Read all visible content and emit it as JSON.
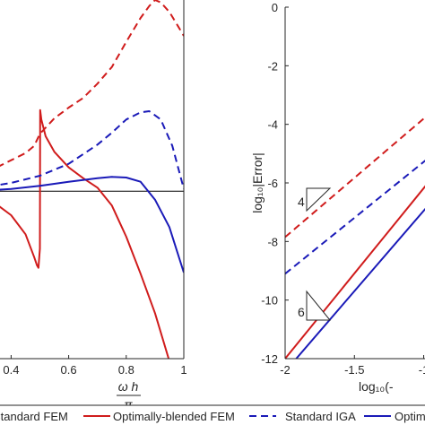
{
  "chart_data": [
    {
      "type": "line",
      "panel": "left",
      "xlabel_num": "ω h",
      "xlabel_den": "π",
      "xlim": [
        0,
        1
      ],
      "ylim": [
        -1.4,
        1.6
      ],
      "xticks": [
        0.4,
        0.6,
        0.8,
        1
      ],
      "xtick_labels": [
        "0.4",
        "0.6",
        "0.8",
        "1"
      ],
      "grid": false,
      "series": [
        {
          "name": "Standard FEM",
          "color": "#000000",
          "dash": "solid",
          "x": [
            0,
            1
          ],
          "y": [
            0,
            0
          ]
        },
        {
          "name": "Optimally-blended FEM",
          "color": "#d01c1c",
          "dash": "solid",
          "x": [
            0.0,
            0.2,
            0.3,
            0.35,
            0.4,
            0.45,
            0.48,
            0.49,
            0.495,
            0.5,
            0.501,
            0.505,
            0.52,
            0.55,
            0.6,
            0.65,
            0.7,
            0.75,
            0.8,
            0.85,
            0.9,
            0.95
          ],
          "y": [
            0.0,
            -0.02,
            -0.06,
            -0.11,
            -0.2,
            -0.36,
            -0.55,
            -0.62,
            -0.64,
            -0.48,
            0.68,
            0.6,
            0.46,
            0.33,
            0.2,
            0.11,
            0.03,
            -0.12,
            -0.38,
            -0.69,
            -1.02,
            -1.42
          ]
        },
        {
          "name": "Standard IGA",
          "color": "#1a1ab8",
          "dash": "solid",
          "x": [
            0.0,
            0.3,
            0.4,
            0.5,
            0.6,
            0.7,
            0.75,
            0.8,
            0.85,
            0.9,
            0.95,
            1.0
          ],
          "y": [
            0.0,
            0.005,
            0.02,
            0.045,
            0.08,
            0.11,
            0.12,
            0.115,
            0.08,
            -0.07,
            -0.3,
            -0.68
          ]
        },
        {
          "name": "Standard IGA (dashed)",
          "color": "#1a1ab8",
          "dash": "dashed",
          "x": [
            0.0,
            0.2,
            0.3,
            0.4,
            0.5,
            0.6,
            0.7,
            0.75,
            0.8,
            0.85,
            0.88,
            0.92,
            0.96,
            1.0
          ],
          "y": [
            0.0,
            0.01,
            0.03,
            0.07,
            0.13,
            0.23,
            0.39,
            0.49,
            0.6,
            0.66,
            0.67,
            0.6,
            0.38,
            0.02
          ]
        },
        {
          "name": "Standard FEM (dashed)",
          "color": "#d01c1c",
          "dash": "dashed",
          "x": [
            0.0,
            0.2,
            0.3,
            0.4,
            0.45,
            0.48,
            0.5,
            0.55,
            0.6,
            0.65,
            0.7,
            0.75,
            0.8,
            0.85,
            0.88,
            0.9,
            0.92,
            0.95,
            0.98,
            1.0
          ],
          "y": [
            0.0,
            0.06,
            0.14,
            0.26,
            0.32,
            0.38,
            0.48,
            0.61,
            0.7,
            0.78,
            0.9,
            1.04,
            1.25,
            1.45,
            1.55,
            1.6,
            1.58,
            1.5,
            1.38,
            1.3
          ]
        }
      ]
    },
    {
      "type": "line",
      "panel": "right",
      "ylabel": "log₁₀|Error|",
      "xlabel": "log₁₀(-",
      "xlim": [
        -2,
        -0.9
      ],
      "ylim": [
        -12,
        0
      ],
      "xticks": [
        -2,
        -1.5,
        -1
      ],
      "xtick_labels": [
        "-2",
        "-1.5",
        "-1"
      ],
      "yticks": [
        0,
        -2,
        -4,
        -6,
        -8,
        -10,
        -12
      ],
      "ytick_labels": [
        "0",
        "-2",
        "-4",
        "-6",
        "-8",
        "-10",
        "-12"
      ],
      "slope_labels": [
        "4",
        "6"
      ],
      "grid": false,
      "series": [
        {
          "name": "Standard FEM",
          "color": "#d01c1c",
          "dash": "dashed",
          "x": [
            -2,
            -0.9
          ],
          "y": [
            -7.85,
            -3.4
          ]
        },
        {
          "name": "Standard IGA",
          "color": "#1a1ab8",
          "dash": "dashed",
          "x": [
            -2,
            -0.9
          ],
          "y": [
            -9.1,
            -4.9
          ]
        },
        {
          "name": "Optimally-blended FEM",
          "color": "#d01c1c",
          "dash": "solid",
          "x": [
            -2,
            -0.9
          ],
          "y": [
            -12.0,
            -5.6
          ]
        },
        {
          "name": "Optimally-blended IGA",
          "color": "#1a1ab8",
          "dash": "solid",
          "x": [
            -1.92,
            -0.9
          ],
          "y": [
            -12.0,
            -6.4
          ]
        }
      ]
    }
  ],
  "legend": {
    "placement": "bottom",
    "entries": [
      {
        "label": "Standard FEM",
        "color": "#000000",
        "dash": "solid"
      },
      {
        "label": "Optimally-blended FEM",
        "color": "#d01c1c",
        "dash": "solid"
      },
      {
        "label": "Standard IGA",
        "color": "#1a1ab8",
        "dash": "dashed"
      },
      {
        "label": "Optimally-",
        "color": "#1a1ab8",
        "dash": "solid"
      }
    ]
  }
}
